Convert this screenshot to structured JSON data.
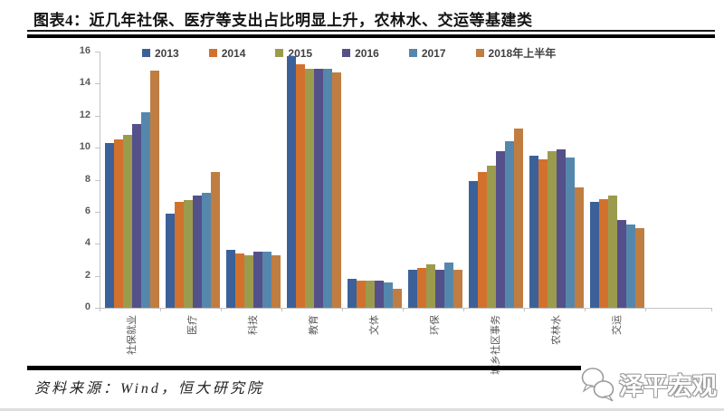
{
  "title": "图表4：近几年社保、医疗等支出占比明显上升，农林水、交运等基建类",
  "source": "资料来源：Wind，恒大研究院",
  "watermark": {
    "label": "泽平宏观",
    "icon": "chat-bubbles-icon"
  },
  "chart_data": {
    "type": "bar",
    "title": "",
    "xlabel": "",
    "ylabel": "",
    "categories": [
      "社保就业",
      "医疗",
      "科技",
      "教育",
      "文体",
      "环保",
      "城乡社区事务",
      "农林水",
      "交运"
    ],
    "series": [
      {
        "name": "2013",
        "color": "#3C6199",
        "values": [
          10.3,
          5.9,
          3.6,
          15.7,
          1.8,
          2.4,
          7.9,
          9.5,
          6.6
        ]
      },
      {
        "name": "2014",
        "color": "#D2712E",
        "values": [
          10.5,
          6.6,
          3.4,
          15.2,
          1.7,
          2.5,
          8.5,
          9.3,
          6.8
        ]
      },
      {
        "name": "2015",
        "color": "#9B9B4D",
        "values": [
          10.8,
          6.7,
          3.3,
          14.9,
          1.7,
          2.7,
          8.9,
          9.8,
          7.0
        ]
      },
      {
        "name": "2016",
        "color": "#54508A",
        "values": [
          11.5,
          7.0,
          3.5,
          14.9,
          1.7,
          2.4,
          9.8,
          9.9,
          5.5
        ]
      },
      {
        "name": "2017",
        "color": "#5587AD",
        "values": [
          12.2,
          7.2,
          3.5,
          14.9,
          1.6,
          2.8,
          10.4,
          9.4,
          5.2
        ]
      },
      {
        "name": "2018年上半年",
        "color": "#C07D42",
        "values": [
          14.8,
          8.5,
          3.3,
          14.7,
          1.2,
          2.4,
          11.2,
          7.5,
          5.0
        ]
      }
    ],
    "ylim": [
      0,
      16
    ],
    "yticks": [
      0,
      2,
      4,
      6,
      8,
      10,
      12,
      14,
      16
    ],
    "legend_position": "top",
    "grid": false
  }
}
